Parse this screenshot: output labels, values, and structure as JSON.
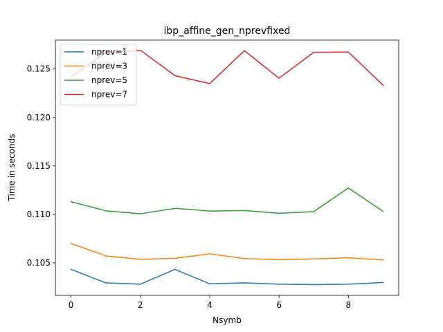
{
  "chart_data": {
    "type": "line",
    "title": "ibp_affine_gen_nprevfixed",
    "xlabel": "Nsymb",
    "ylabel": "Time in seconds",
    "x": [
      0,
      1,
      2,
      3,
      4,
      5,
      6,
      7,
      8,
      9
    ],
    "xlim": [
      -0.45,
      9.45
    ],
    "ylim": [
      0.10164,
      0.12798
    ],
    "xticks": [
      0,
      2,
      4,
      6,
      8
    ],
    "yticks": [
      0.105,
      0.11,
      0.115,
      0.12,
      0.125
    ],
    "ytick_labels": [
      "0.105",
      "0.110",
      "0.115",
      "0.120",
      "0.125"
    ],
    "grid": false,
    "legend_position": "top-left",
    "series": [
      {
        "name": "nprev=1",
        "color": "#1f77b4",
        "values": [
          0.10432,
          0.10293,
          0.10279,
          0.10432,
          0.10283,
          0.10293,
          0.10279,
          0.10275,
          0.10279,
          0.10297
        ]
      },
      {
        "name": "nprev=3",
        "color": "#ff7f0e",
        "values": [
          0.10699,
          0.10572,
          0.10535,
          0.10547,
          0.10592,
          0.10544,
          0.10532,
          0.1054,
          0.10552,
          0.10529
        ]
      },
      {
        "name": "nprev=5",
        "color": "#2ca02c",
        "values": [
          0.11131,
          0.11037,
          0.11005,
          0.11062,
          0.11034,
          0.11039,
          0.11011,
          0.11028,
          0.11272,
          0.11031
        ]
      },
      {
        "name": "nprev=7",
        "color": "#d62728",
        "values": [
          0.12418,
          0.12666,
          0.12694,
          0.12431,
          0.12349,
          0.12689,
          0.12405,
          0.12672,
          0.12675,
          0.12333
        ]
      }
    ]
  }
}
